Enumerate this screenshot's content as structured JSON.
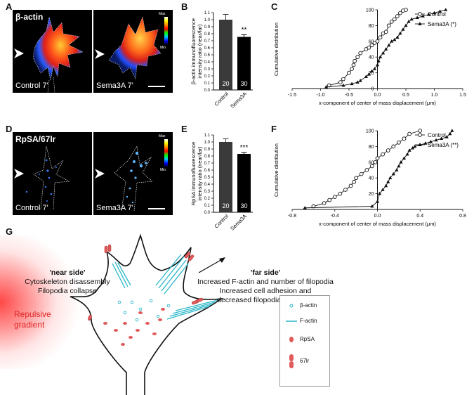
{
  "panels": {
    "A": "A",
    "B": "B",
    "C": "C",
    "D": "D",
    "E": "E",
    "F": "F",
    "G": "G"
  },
  "micrographs": {
    "A_title": "β-actin",
    "A_left_label": "Control 7'",
    "A_right_label": "Sema3A 7'",
    "A_cbar_max": "Max",
    "A_cbar_min": "Min",
    "D_title": "RpSA/67lr",
    "D_left_label": "Control 7'",
    "D_right_label": "Sema3A 7'",
    "D_cbar_max": "Max",
    "D_cbar_min": "Min"
  },
  "chart_data": [
    {
      "panel": "B",
      "type": "bar",
      "categories": [
        "Control",
        "Sema3A"
      ],
      "values": [
        1.0,
        0.755
      ],
      "errors": [
        0.075,
        0.03
      ],
      "n_labels": [
        "20",
        "30"
      ],
      "significance": "**",
      "ylabel": "β-actin immunofluorescence intensity ratio (near/far)",
      "ylim": [
        0,
        1.1
      ],
      "yticks": [
        "0.0",
        "0.1",
        "0.2",
        "0.3",
        "0.4",
        "0.5",
        "0.6",
        "0.7",
        "0.8",
        "0.9",
        "1.0",
        "1.1"
      ],
      "colors": [
        "#3a3a3a",
        "#000000"
      ]
    },
    {
      "panel": "C",
      "type": "line",
      "xlabel": "x-component of center of mass displacement (μm)",
      "ylabel": "Cumulative distribution",
      "xlim": [
        -1.5,
        1.5
      ],
      "ylim": [
        0,
        100
      ],
      "xticks": [
        "-1.5",
        "-1.0",
        "-0.5",
        "0.0",
        "0.5",
        "1.0",
        "1.5"
      ],
      "yticks": [
        "0",
        "20",
        "40",
        "60",
        "80",
        "100"
      ],
      "legend": [
        "Control",
        "Sema3A (*)"
      ],
      "series": [
        {
          "name": "Control",
          "marker": "circle",
          "x": [
            -0.85,
            -0.65,
            -0.6,
            -0.5,
            -0.45,
            -0.42,
            -0.4,
            -0.35,
            -0.3,
            -0.2,
            -0.15,
            -0.1,
            -0.05,
            0.0,
            0.05,
            0.1,
            0.15,
            0.2,
            0.25,
            0.3,
            0.35,
            0.4,
            0.45,
            0.5
          ],
          "y": [
            4,
            8,
            12,
            20,
            25,
            30,
            35,
            40,
            45,
            50,
            52,
            55,
            58,
            60,
            65,
            70,
            72,
            80,
            85,
            88,
            92,
            96,
            99,
            100
          ]
        },
        {
          "name": "Sema3A (*)",
          "marker": "triangle",
          "x": [
            -0.9,
            -0.6,
            -0.45,
            -0.35,
            -0.3,
            -0.2,
            -0.15,
            -0.1,
            -0.05,
            0.0,
            0.02,
            0.05,
            0.1,
            0.15,
            0.2,
            0.25,
            0.3,
            0.35,
            0.4,
            0.45,
            0.5,
            0.55,
            0.6,
            0.7,
            0.8,
            0.9,
            1.0,
            1.1,
            1.2
          ],
          "y": [
            2,
            4,
            6,
            8,
            10,
            15,
            18,
            22,
            25,
            30,
            35,
            40,
            45,
            50,
            55,
            60,
            62,
            65,
            70,
            75,
            80,
            85,
            88,
            90,
            92,
            94,
            96,
            98,
            100
          ]
        }
      ]
    },
    {
      "panel": "E",
      "type": "bar",
      "categories": [
        "Control",
        "Sema3A"
      ],
      "values": [
        1.0,
        0.83
      ],
      "errors": [
        0.045,
        0.02
      ],
      "n_labels": [
        "20",
        "30"
      ],
      "significance": "***",
      "ylabel": "RpSA immunofluorescence intensity ratio (near/far)",
      "ylim": [
        0,
        1.1
      ],
      "yticks": [
        "0.0",
        "0.1",
        "0.2",
        "0.3",
        "0.4",
        "0.5",
        "0.6",
        "0.7",
        "0.8",
        "0.9",
        "1.0",
        "1.1"
      ],
      "colors": [
        "#3a3a3a",
        "#000000"
      ]
    },
    {
      "panel": "F",
      "type": "line",
      "xlabel": "x-component of center of mass displacement (μm)",
      "ylabel": "Cumulative distribution",
      "xlim": [
        -0.8,
        0.8
      ],
      "ylim": [
        0,
        100
      ],
      "xticks": [
        "-0.8",
        "-0.4",
        "0.0",
        "0.4",
        "0.8"
      ],
      "yticks": [
        "20",
        "40",
        "60",
        "80",
        "100"
      ],
      "legend": [
        "Control",
        "Sema3A (**)"
      ],
      "series": [
        {
          "name": "Control",
          "marker": "circle",
          "x": [
            -0.6,
            -0.5,
            -0.45,
            -0.4,
            -0.35,
            -0.3,
            -0.25,
            -0.22,
            -0.2,
            -0.15,
            -0.1,
            -0.05,
            -0.02,
            0.0,
            0.05,
            0.1,
            0.15,
            0.2,
            0.25,
            0.3,
            0.4
          ],
          "y": [
            4,
            8,
            12,
            16,
            20,
            25,
            30,
            35,
            40,
            45,
            50,
            55,
            60,
            65,
            70,
            75,
            80,
            85,
            90,
            96,
            100
          ]
        },
        {
          "name": "Sema3A (**)",
          "marker": "triangle",
          "x": [
            -0.68,
            -0.05,
            0.0,
            0.02,
            0.05,
            0.08,
            0.1,
            0.12,
            0.15,
            0.18,
            0.2,
            0.22,
            0.25,
            0.28,
            0.3,
            0.33,
            0.35,
            0.4,
            0.45,
            0.5,
            0.55,
            0.6,
            0.65,
            0.68,
            0.7
          ],
          "y": [
            2,
            4,
            10,
            20,
            25,
            30,
            35,
            40,
            45,
            50,
            55,
            60,
            65,
            70,
            75,
            78,
            80,
            82,
            84,
            86,
            88,
            90,
            92,
            96,
            100
          ]
        }
      ]
    }
  ],
  "diagram": {
    "near_side_title": "'near side'",
    "near_side_line1": "Cytoskeleton disassembly",
    "near_side_line2": "Filopodia collapse",
    "far_side_title": "'far side'",
    "far_side_line1": "Increased F-actin and number of filopodia",
    "far_side_line2": "Increased cell adhesion and",
    "far_side_line3": "decreased filopodia retraction",
    "gradient_line1": "Repulsive",
    "gradient_line2": "gradient",
    "legend": {
      "item1": "β-actin",
      "item2": "F-actin",
      "item3": "RpSA",
      "item4": "67lr"
    },
    "colors": {
      "actin": "#2ab7c9",
      "rpsa": "#e05a5a",
      "gradient": "#ff3b3b"
    }
  }
}
